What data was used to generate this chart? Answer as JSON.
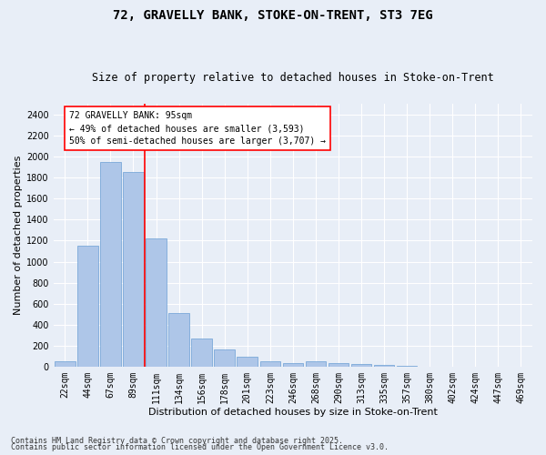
{
  "title1": "72, GRAVELLY BANK, STOKE-ON-TRENT, ST3 7EG",
  "title2": "Size of property relative to detached houses in Stoke-on-Trent",
  "xlabel": "Distribution of detached houses by size in Stoke-on-Trent",
  "ylabel": "Number of detached properties",
  "categories": [
    "22sqm",
    "44sqm",
    "67sqm",
    "89sqm",
    "111sqm",
    "134sqm",
    "156sqm",
    "178sqm",
    "201sqm",
    "223sqm",
    "246sqm",
    "268sqm",
    "290sqm",
    "313sqm",
    "335sqm",
    "357sqm",
    "380sqm",
    "402sqm",
    "424sqm",
    "447sqm",
    "469sqm"
  ],
  "values": [
    50,
    1150,
    1950,
    1850,
    1220,
    510,
    270,
    165,
    100,
    55,
    40,
    55,
    40,
    30,
    15,
    8,
    5,
    3,
    2,
    1,
    1
  ],
  "bar_color": "#aec6e8",
  "bar_edge_color": "#6b9fd4",
  "vline_x_index": 3.5,
  "vline_color": "red",
  "annotation_text": "72 GRAVELLY BANK: 95sqm\n← 49% of detached houses are smaller (3,593)\n50% of semi-detached houses are larger (3,707) →",
  "annotation_box_color": "white",
  "annotation_box_edge": "red",
  "bg_color": "#e8eef7",
  "footer1": "Contains HM Land Registry data © Crown copyright and database right 2025.",
  "footer2": "Contains public sector information licensed under the Open Government Licence v3.0.",
  "ylim": [
    0,
    2500
  ],
  "yticks": [
    0,
    200,
    400,
    600,
    800,
    1000,
    1200,
    1400,
    1600,
    1800,
    2000,
    2200,
    2400
  ],
  "title1_fontsize": 10,
  "title2_fontsize": 8.5,
  "xlabel_fontsize": 8,
  "ylabel_fontsize": 8,
  "tick_fontsize": 7,
  "annot_fontsize": 7,
  "footer_fontsize": 6
}
